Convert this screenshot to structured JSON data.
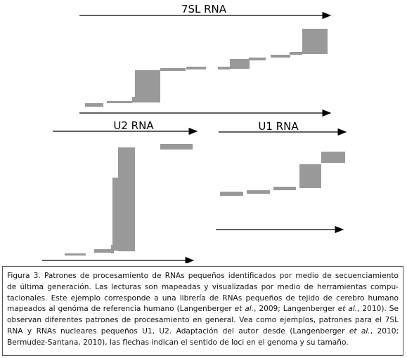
{
  "figure": {
    "labels": [
      "7SL RNA",
      "U2 RNA",
      "U1 RNA"
    ]
  },
  "caption": {
    "lines": [
      [
        "Figura 3. Patrones de procesamiento de RNAs pequeños identificados por medio de secuenciamiento"
      ],
      [
        "de última generación. Las lecturas son mapeadas y visualizadas por medio de herramientas compu-"
      ],
      [
        "tacionales. Este ejemplo corresponde a una librería de RNAs pequeños de tejido de cerebro humano"
      ],
      [
        "mapeados al genóma de referencia humano (Langenberger ",
        "et al.",
        ", 2009; Langenberger ",
        "et al.",
        ", 2010). Se"
      ],
      [
        "observan diferentes patrones de procesamiento en general. Vea como ejemplos, patrones para el 7SL"
      ],
      [
        "RNA y RNAs nucleares pequeños U1, U2. Adaptación del autor desde (Langenberger ",
        "et al.",
        ", 2010;"
      ],
      [
        "Bermudez-Santana, 2010), las flechas indican el sentido de loci en el genoma y su tamaño."
      ]
    ]
  }
}
